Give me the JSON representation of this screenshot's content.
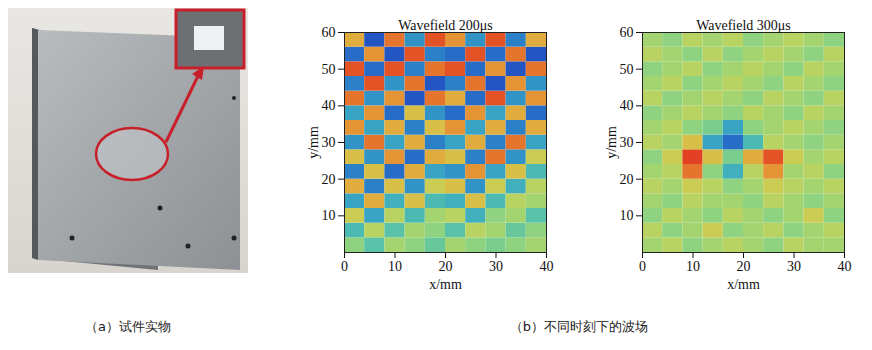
{
  "chart_data": [
    {
      "type": "heatmap",
      "title": "Wavefield 200μs",
      "x_label": "x/mm",
      "y_label": "y/mm",
      "xlim": [
        0,
        40
      ],
      "ylim": [
        0,
        60
      ],
      "xticks": [
        0,
        10,
        20,
        30,
        40
      ],
      "yticks": [
        10,
        20,
        30,
        40,
        50,
        60
      ],
      "x_bins": [
        0,
        4,
        8,
        12,
        16,
        20,
        24,
        28,
        32,
        36,
        40
      ],
      "y_bins": [
        0,
        4,
        8,
        12,
        16,
        20,
        24,
        28,
        32,
        36,
        40,
        44,
        48,
        52,
        56,
        60
      ],
      "zlim": [
        -1,
        1
      ],
      "values": [
        [
          0.1,
          -0.2,
          0.2,
          0.1,
          -0.1,
          0.2,
          0.1,
          0,
          0.1,
          0.2
        ],
        [
          -0.3,
          0.3,
          -0.2,
          0.2,
          0.1,
          -0.2,
          0.3,
          0.2,
          -0.1,
          0.1
        ],
        [
          0.4,
          -0.5,
          0.3,
          -0.3,
          0.2,
          0.3,
          -0.4,
          0.1,
          0.2,
          -0.2
        ],
        [
          -0.5,
          0.6,
          -0.4,
          0.5,
          -0.3,
          -0.4,
          0.5,
          -0.3,
          0.3,
          0.2
        ],
        [
          0.6,
          -0.7,
          0.5,
          -0.6,
          0.4,
          0.5,
          -0.6,
          0.4,
          -0.4,
          0.3
        ],
        [
          -0.7,
          0.5,
          -0.8,
          0.6,
          -0.5,
          -0.6,
          0.7,
          -0.5,
          0.5,
          -0.3
        ],
        [
          0.5,
          -0.6,
          0.7,
          -0.8,
          0.6,
          0.5,
          -0.7,
          0.8,
          -0.6,
          0.4
        ],
        [
          -0.6,
          0.8,
          -0.5,
          0.6,
          -0.7,
          -0.5,
          0.6,
          -0.7,
          0.8,
          -0.5
        ],
        [
          0.7,
          -0.5,
          0.6,
          -0.7,
          0.5,
          0.7,
          -0.5,
          0.6,
          -0.7,
          0.6
        ],
        [
          -0.5,
          0.7,
          -0.8,
          0.5,
          -0.6,
          -0.8,
          0.7,
          -0.5,
          0.6,
          -0.8
        ],
        [
          0.8,
          -0.6,
          0.7,
          -0.9,
          0.8,
          0.6,
          -0.8,
          0.9,
          -0.6,
          0.7
        ],
        [
          -0.7,
          0.9,
          -0.6,
          0.8,
          -0.9,
          -0.7,
          0.8,
          -0.9,
          0.7,
          -0.6
        ],
        [
          0.9,
          -0.8,
          0.9,
          -0.7,
          0.8,
          0.9,
          -0.8,
          0.7,
          -0.9,
          0.8
        ],
        [
          -0.8,
          0.7,
          -0.9,
          0.9,
          -0.7,
          -0.8,
          0.9,
          -0.8,
          0.8,
          -0.9
        ],
        [
          0.6,
          -0.9,
          0.8,
          -0.6,
          0.9,
          0.7,
          -0.6,
          0.9,
          -0.7,
          0.6
        ]
      ]
    },
    {
      "type": "heatmap",
      "title": "Wavefield 300μs",
      "x_label": "x/mm",
      "y_label": "y/mm",
      "xlim": [
        0,
        40
      ],
      "ylim": [
        0,
        60
      ],
      "xticks": [
        0,
        10,
        20,
        30,
        40
      ],
      "yticks": [
        10,
        20,
        30,
        40,
        50,
        60
      ],
      "x_bins": [
        0,
        4,
        8,
        12,
        16,
        20,
        24,
        28,
        32,
        36,
        40
      ],
      "y_bins": [
        0,
        4,
        8,
        12,
        16,
        20,
        24,
        28,
        32,
        36,
        40,
        44,
        48,
        52,
        56,
        60
      ],
      "zlim": [
        -1,
        1
      ],
      "values": [
        [
          0.2,
          0.3,
          0.1,
          0.2,
          0.3,
          0.2,
          0.1,
          0.3,
          0.2,
          0.2
        ],
        [
          0.3,
          0.1,
          0.2,
          0.4,
          0.1,
          0.2,
          0.3,
          0.1,
          0.2,
          0.3
        ],
        [
          0.1,
          0.3,
          0.2,
          0.1,
          0.3,
          0.2,
          0.1,
          0.2,
          0.4,
          0.1
        ],
        [
          0.2,
          0.1,
          0.3,
          0.2,
          0.2,
          0.1,
          0.3,
          0.2,
          0.1,
          0.2
        ],
        [
          0.3,
          0.2,
          0.4,
          0.3,
          0.1,
          0.2,
          0.4,
          0.3,
          0.2,
          0.3
        ],
        [
          0.2,
          0.3,
          0.8,
          0.1,
          -0.4,
          0.3,
          0.7,
          0.2,
          0.3,
          0.1
        ],
        [
          0.1,
          0.4,
          0.95,
          0.5,
          0.0,
          0.6,
          0.9,
          0.4,
          0.2,
          0.3
        ],
        [
          0.3,
          0.2,
          0.5,
          -0.5,
          -0.8,
          -0.3,
          0.3,
          0.2,
          0.1,
          0.2
        ],
        [
          0.2,
          0.3,
          0.1,
          0.0,
          -0.5,
          0.1,
          0.2,
          0.3,
          0.2,
          0.1
        ],
        [
          0.1,
          0.2,
          0.3,
          0.2,
          0.1,
          0.3,
          0.2,
          0.1,
          0.3,
          0.2
        ],
        [
          0.3,
          0.1,
          0.2,
          0.3,
          0.2,
          0.1,
          0.3,
          0.2,
          0.1,
          0.3
        ],
        [
          0.2,
          0.3,
          0.1,
          0.2,
          0.3,
          0.2,
          0.1,
          0.3,
          0.2,
          0.1
        ],
        [
          0.1,
          0.2,
          0.3,
          0.1,
          0.2,
          0.3,
          0.2,
          0.1,
          0.3,
          0.2
        ],
        [
          0.3,
          0.2,
          0.1,
          0.3,
          0.1,
          0.2,
          0.3,
          0.2,
          0.1,
          0.3
        ],
        [
          0.2,
          0.1,
          0.3,
          0.2,
          0.3,
          0.1,
          0.2,
          0.3,
          0.2,
          0.1
        ]
      ]
    }
  ],
  "panels": {
    "a": {
      "caption": "（a）试件实物"
    },
    "b": {
      "caption": "（b）不同时刻下的波场"
    }
  }
}
